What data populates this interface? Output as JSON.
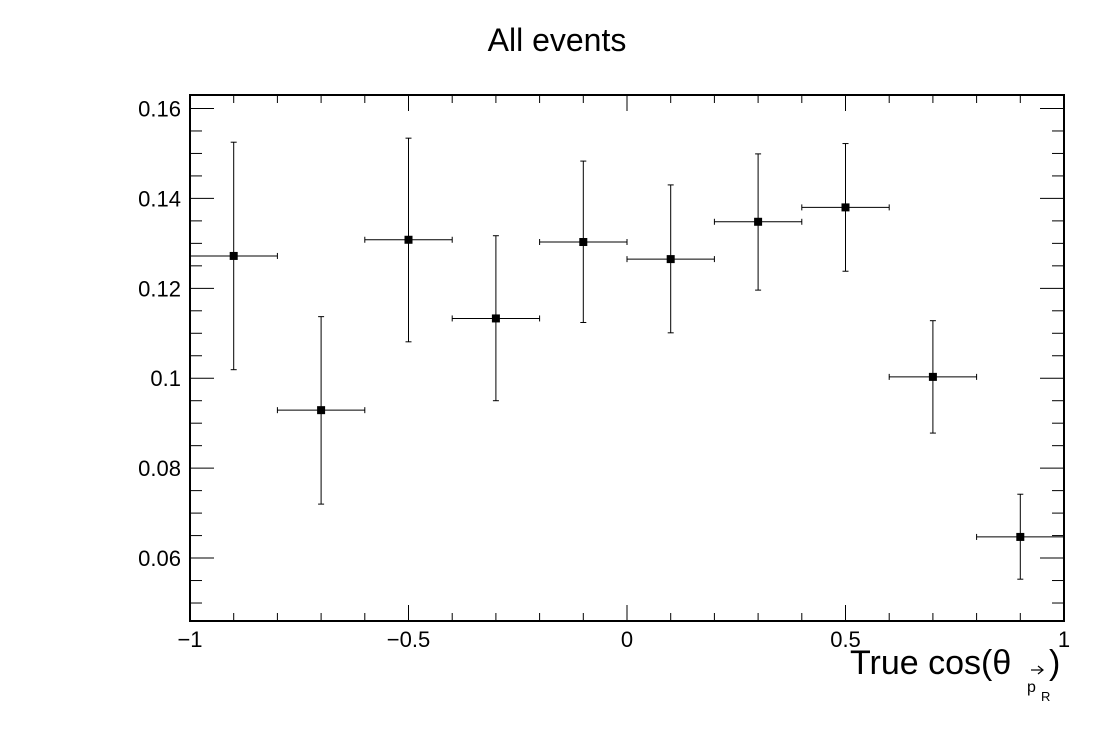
{
  "chart_data": {
    "type": "scatter",
    "title": "All events",
    "xlabel": "True cos(θ",
    "xlabel_sub": "p",
    "xlabel_subsub": "R",
    "xlabel_end": ")",
    "ylabel": "",
    "xlim": [
      -1,
      1
    ],
    "ylim": [
      0.046,
      0.163
    ],
    "grid": false,
    "legend": "none",
    "x_ticks": [
      {
        "value": -1,
        "label": "−1"
      },
      {
        "value": -0.5,
        "label": "−0.5"
      },
      {
        "value": 0,
        "label": "0"
      },
      {
        "value": 0.5,
        "label": "0.5"
      },
      {
        "value": 1,
        "label": "1"
      }
    ],
    "y_ticks": [
      {
        "value": 0.06,
        "label": "0.06"
      },
      {
        "value": 0.08,
        "label": "0.08"
      },
      {
        "value": 0.1,
        "label": "0.1"
      },
      {
        "value": 0.12,
        "label": "0.12"
      },
      {
        "value": 0.14,
        "label": "0.14"
      },
      {
        "value": 0.16,
        "label": "0.16"
      }
    ],
    "series": [
      {
        "color": "#000000",
        "points": [
          {
            "x": -0.9,
            "y": 0.1272,
            "xerr": 0.1,
            "ylo": 0.1019,
            "yhi": 0.1525
          },
          {
            "x": -0.7,
            "y": 0.0929,
            "xerr": 0.1,
            "ylo": 0.072,
            "yhi": 0.1137
          },
          {
            "x": -0.5,
            "y": 0.1308,
            "xerr": 0.1,
            "ylo": 0.1081,
            "yhi": 0.1534
          },
          {
            "x": -0.3,
            "y": 0.1133,
            "xerr": 0.1,
            "ylo": 0.095,
            "yhi": 0.1317
          },
          {
            "x": -0.1,
            "y": 0.1303,
            "xerr": 0.1,
            "ylo": 0.1124,
            "yhi": 0.1483
          },
          {
            "x": 0.1,
            "y": 0.1265,
            "xerr": 0.1,
            "ylo": 0.1101,
            "yhi": 0.143
          },
          {
            "x": 0.3,
            "y": 0.1348,
            "xerr": 0.1,
            "ylo": 0.1196,
            "yhi": 0.1499
          },
          {
            "x": 0.5,
            "y": 0.138,
            "xerr": 0.1,
            "ylo": 0.1238,
            "yhi": 0.1522
          },
          {
            "x": 0.7,
            "y": 0.1003,
            "xerr": 0.1,
            "ylo": 0.0878,
            "yhi": 0.1128
          },
          {
            "x": 0.9,
            "y": 0.0647,
            "xerr": 0.1,
            "ylo": 0.0553,
            "yhi": 0.0742
          }
        ]
      }
    ]
  }
}
